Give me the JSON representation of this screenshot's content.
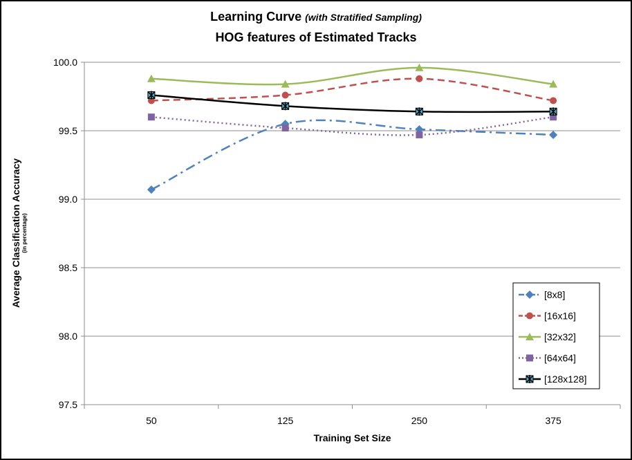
{
  "chart_data": {
    "type": "line",
    "title": "Learning Curve",
    "title_suffix": "(with Stratified Sampling)",
    "subtitle": "HOG features of Estimated Tracks",
    "xlabel": "Training Set Size",
    "ylabel": "Average Classification Accuracy",
    "ylabel_sub": "(in percentage)",
    "categories": [
      "50",
      "125",
      "250",
      "375"
    ],
    "ylim": [
      97.5,
      100.0
    ],
    "yticks": [
      "97.5",
      "98.0",
      "98.5",
      "99.0",
      "99.5",
      "100.0"
    ],
    "grid": true,
    "legend_position": "bottom-right",
    "series": [
      {
        "name": "[8x8]",
        "values": [
          99.07,
          99.55,
          99.51,
          99.47
        ],
        "color": "#4f81bd",
        "dash": "dash-dot",
        "marker": "diamond"
      },
      {
        "name": "[16x16]",
        "values": [
          99.72,
          99.76,
          99.88,
          99.72
        ],
        "color": "#c0504d",
        "dash": "dashed",
        "marker": "circle"
      },
      {
        "name": "[32x32]",
        "values": [
          99.88,
          99.84,
          99.96,
          99.84
        ],
        "color": "#9bbb59",
        "dash": "solid",
        "marker": "triangle"
      },
      {
        "name": "[64x64]",
        "values": [
          99.6,
          99.52,
          99.47,
          99.6
        ],
        "color": "#8064a2",
        "dash": "dotted",
        "marker": "square"
      },
      {
        "name": "[128x128]",
        "values": [
          99.76,
          99.68,
          99.64,
          99.64
        ],
        "color": "#000000",
        "dash": "solid",
        "marker": "star"
      }
    ]
  }
}
